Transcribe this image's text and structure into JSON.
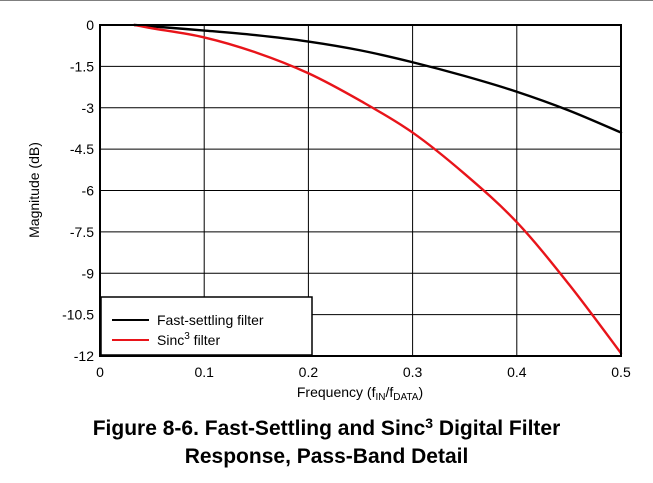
{
  "chart_data": {
    "type": "line",
    "title": "",
    "xlabel": {
      "base": "Frequency (f",
      "sub1": "IN",
      "mid": "/f",
      "sub2": "DATA",
      "end": ")"
    },
    "ylabel": "Magnitude (dB)",
    "xlim": [
      0,
      0.5
    ],
    "ylim": [
      -12,
      0
    ],
    "xticks": [
      "0",
      "0.1",
      "0.2",
      "0.3",
      "0.4",
      "0.5"
    ],
    "yticks": [
      "0",
      "-1.5",
      "-3",
      "-4.5",
      "-6",
      "-7.5",
      "-9",
      "-10.5",
      "-12"
    ],
    "grid": true,
    "legend_position": "bottom-left",
    "series": [
      {
        "name": "Fast-settling filter",
        "color": "#000000",
        "x": [
          0.033,
          0.05,
          0.1,
          0.15,
          0.2,
          0.25,
          0.3,
          0.35,
          0.4,
          0.45,
          0.5
        ],
        "y": [
          0,
          -0.05,
          -0.2,
          -0.37,
          -0.6,
          -0.92,
          -1.35,
          -1.85,
          -2.42,
          -3.1,
          -3.9
        ]
      },
      {
        "name": "Sinc³ filter",
        "name_parts": {
          "base": "Sinc",
          "sup": "3",
          "end": " filter"
        },
        "color": "#e8141a",
        "x": [
          0.033,
          0.05,
          0.1,
          0.15,
          0.2,
          0.25,
          0.3,
          0.35,
          0.4,
          0.45,
          0.5
        ],
        "y": [
          0,
          -0.12,
          -0.45,
          -1.0,
          -1.75,
          -2.75,
          -3.9,
          -5.4,
          -7.15,
          -9.4,
          -11.9
        ]
      }
    ]
  },
  "caption": {
    "line1_a": "Figure 8-6. Fast-Settling and Sinc",
    "line1_sup": "3",
    "line1_b": " Digital Filter",
    "line2": "Response, Pass-Band Detail"
  }
}
